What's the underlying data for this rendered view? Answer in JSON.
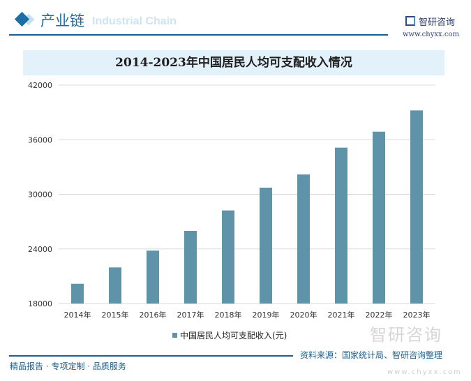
{
  "header": {
    "section": "产业链",
    "section_en": "Industrial Chain",
    "brand": "智研咨询",
    "url": "www.chyxx.com"
  },
  "footer": {
    "slogan": "精品报告 · 专项定制 · 品质服务",
    "source": "资料来源：国家统计局、智研咨询整理",
    "watermark": "智研咨询",
    "watermark_url": "www.chyxx.com"
  },
  "colors": {
    "bar": "#5f93aa",
    "accent": "#1a6fa6"
  },
  "chart_data": {
    "type": "bar",
    "title": "2014-2023年中国居民人均可支配收入情况",
    "categories": [
      "2014年",
      "2015年",
      "2016年",
      "2017年",
      "2018年",
      "2019年",
      "2020年",
      "2021年",
      "2022年",
      "2023年"
    ],
    "series": [
      {
        "name": "中国居民人均可支配收入(元)",
        "values": [
          20167,
          21966,
          23821,
          25974,
          28228,
          30733,
          32189,
          35128,
          36883,
          39218
        ]
      }
    ],
    "ylim": [
      18000,
      42000
    ],
    "yticks": [
      "18000",
      "24000",
      "30000",
      "36000",
      "42000"
    ],
    "grid": true,
    "legend": "bottom-center"
  }
}
